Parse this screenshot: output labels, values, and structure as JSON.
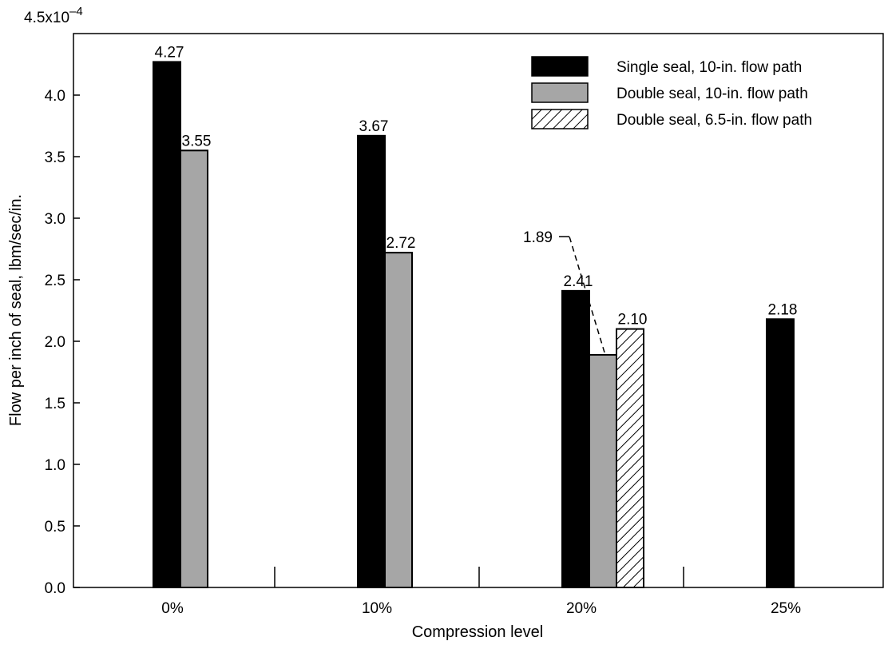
{
  "chart_data": {
    "type": "bar",
    "categories": [
      "0%",
      "10%",
      "20%",
      "25%"
    ],
    "series": [
      {
        "name": "Single seal, 10-in. flow path",
        "values": [
          4.27,
          3.67,
          2.41,
          2.18
        ],
        "fill": "solid-black"
      },
      {
        "name": "Double seal, 10-in. flow path",
        "values": [
          3.55,
          2.72,
          1.89,
          null
        ],
        "fill": "solid-gray"
      },
      {
        "name": "Double seal, 6.5-in. flow path",
        "values": [
          null,
          null,
          2.1,
          null
        ],
        "fill": "diagonal-hatch"
      }
    ],
    "value_labels": [
      [
        "4.27",
        "3.67",
        "2.41",
        "2.18"
      ],
      [
        "3.55",
        "2.72",
        "1.89",
        ""
      ],
      [
        "",
        "",
        "2.10",
        ""
      ]
    ],
    "xlabel": "Compression level",
    "ylabel": "Flow per inch of seal, lbm/sec/in.",
    "ylim": [
      0,
      4.5
    ],
    "y_ticks": [
      "0.0",
      "0.5",
      "1.0",
      "1.5",
      "2.0",
      "2.5",
      "3.0",
      "3.5",
      "4.0"
    ],
    "y_top_label": "4.5x10",
    "y_top_exponent": "–4",
    "grid": false,
    "legend_position": "top-right",
    "colors": {
      "single": "#000000",
      "double": "#a6a6a6",
      "hatch_bg": "#ffffff",
      "axis": "#000000"
    }
  }
}
